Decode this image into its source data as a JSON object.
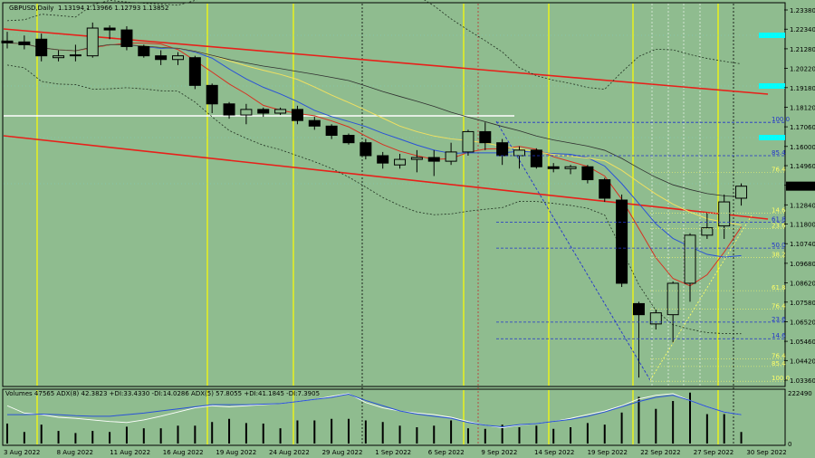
{
  "header": {
    "symbol": "GBPUSD,Daily",
    "ohlc": "1.13194 1.13966 1.12793 1.13852"
  },
  "indicator_label": "Volumes 47565  ADX(8) 42.3823 +DI:33.4330 -DI:14.0286  ADX(5) 57.8055 +DI:41.1845 -DI:7.3905",
  "colors": {
    "background": "#8fbc8f",
    "trendline": "#e8201a",
    "yellow_vline": "#ffff00",
    "cyan_level": "#00ffff",
    "fib_blue": "#2233cc",
    "fib_yellow": "#ffff66",
    "ma_red": "#d83020",
    "ma_blue": "#2a52d8",
    "ma_yellow": "#f0e060",
    "ma_black": "#303030"
  },
  "chart_data": {
    "type": "candlestick",
    "price_axis_ticks": [
      "1.23380",
      "1.22340",
      "1.21280",
      "1.20220",
      "1.19180",
      "1.18120",
      "1.17060",
      "1.16000",
      "1.14960",
      "1.13900",
      "1.12840",
      "1.11800",
      "1.10740",
      "1.09680",
      "1.08620",
      "1.07580",
      "1.06520",
      "1.05460",
      "1.04420",
      "1.03360"
    ],
    "current_price": "1.13852",
    "date_labels": [
      "3 Aug 2022",
      "8 Aug 2022",
      "11 Aug 2022",
      "16 Aug 2022",
      "19 Aug 2022",
      "24 Aug 2022",
      "29 Aug 2022",
      "1 Sep 2022",
      "6 Sep 2022",
      "9 Sep 2022",
      "14 Sep 2022",
      "19 Sep 2022",
      "22 Sep 2022",
      "27 Sep 2022",
      "30 Sep 2022"
    ],
    "volume_axis_label": "222490",
    "volume_axis_zero": "0",
    "candles": [
      {
        "o": 1.217,
        "h": 1.222,
        "l": 1.213,
        "c": 1.216
      },
      {
        "o": 1.2165,
        "h": 1.22,
        "l": 1.2125,
        "c": 1.215
      },
      {
        "o": 1.218,
        "h": 1.221,
        "l": 1.206,
        "c": 1.209
      },
      {
        "o": 1.208,
        "h": 1.212,
        "l": 1.206,
        "c": 1.209
      },
      {
        "o": 1.209,
        "h": 1.215,
        "l": 1.206,
        "c": 1.2095
      },
      {
        "o": 1.209,
        "h": 1.227,
        "l": 1.208,
        "c": 1.224
      },
      {
        "o": 1.224,
        "h": 1.2255,
        "l": 1.218,
        "c": 1.223
      },
      {
        "o": 1.223,
        "h": 1.225,
        "l": 1.212,
        "c": 1.214
      },
      {
        "o": 1.214,
        "h": 1.215,
        "l": 1.208,
        "c": 1.209
      },
      {
        "o": 1.209,
        "h": 1.212,
        "l": 1.204,
        "c": 1.207
      },
      {
        "o": 1.207,
        "h": 1.211,
        "l": 1.204,
        "c": 1.209
      },
      {
        "o": 1.208,
        "h": 1.209,
        "l": 1.191,
        "c": 1.193
      },
      {
        "o": 1.193,
        "h": 1.194,
        "l": 1.178,
        "c": 1.183
      },
      {
        "o": 1.183,
        "h": 1.184,
        "l": 1.175,
        "c": 1.177
      },
      {
        "o": 1.177,
        "h": 1.183,
        "l": 1.172,
        "c": 1.18
      },
      {
        "o": 1.18,
        "h": 1.181,
        "l": 1.176,
        "c": 1.178
      },
      {
        "o": 1.178,
        "h": 1.181,
        "l": 1.177,
        "c": 1.18
      },
      {
        "o": 1.18,
        "h": 1.182,
        "l": 1.172,
        "c": 1.174
      },
      {
        "o": 1.174,
        "h": 1.176,
        "l": 1.169,
        "c": 1.171
      },
      {
        "o": 1.171,
        "h": 1.172,
        "l": 1.164,
        "c": 1.166
      },
      {
        "o": 1.166,
        "h": 1.167,
        "l": 1.161,
        "c": 1.162
      },
      {
        "o": 1.162,
        "h": 1.164,
        "l": 1.153,
        "c": 1.155
      },
      {
        "o": 1.155,
        "h": 1.157,
        "l": 1.148,
        "c": 1.151
      },
      {
        "o": 1.15,
        "h": 1.156,
        "l": 1.148,
        "c": 1.153
      },
      {
        "o": 1.153,
        "h": 1.158,
        "l": 1.146,
        "c": 1.154
      },
      {
        "o": 1.154,
        "h": 1.158,
        "l": 1.144,
        "c": 1.152
      },
      {
        "o": 1.152,
        "h": 1.162,
        "l": 1.15,
        "c": 1.157
      },
      {
        "o": 1.157,
        "h": 1.169,
        "l": 1.155,
        "c": 1.168
      },
      {
        "o": 1.168,
        "h": 1.173,
        "l": 1.158,
        "c": 1.162
      },
      {
        "o": 1.162,
        "h": 1.164,
        "l": 1.15,
        "c": 1.155
      },
      {
        "o": 1.155,
        "h": 1.16,
        "l": 1.148,
        "c": 1.158
      },
      {
        "o": 1.158,
        "h": 1.159,
        "l": 1.148,
        "c": 1.149
      },
      {
        "o": 1.149,
        "h": 1.151,
        "l": 1.146,
        "c": 1.148
      },
      {
        "o": 1.148,
        "h": 1.15,
        "l": 1.145,
        "c": 1.149
      },
      {
        "o": 1.149,
        "h": 1.15,
        "l": 1.14,
        "c": 1.142
      },
      {
        "o": 1.142,
        "h": 1.143,
        "l": 1.13,
        "c": 1.132
      },
      {
        "o": 1.131,
        "h": 1.134,
        "l": 1.084,
        "c": 1.086
      },
      {
        "o": 1.075,
        "h": 1.076,
        "l": 1.035,
        "c": 1.069
      },
      {
        "o": 1.064,
        "h": 1.072,
        "l": 1.061,
        "c": 1.07
      },
      {
        "o": 1.069,
        "h": 1.087,
        "l": 1.054,
        "c": 1.086
      },
      {
        "o": 1.086,
        "h": 1.113,
        "l": 1.076,
        "c": 1.112
      },
      {
        "o": 1.112,
        "h": 1.124,
        "l": 1.11,
        "c": 1.116
      },
      {
        "o": 1.117,
        "h": 1.134,
        "l": 1.11,
        "c": 1.13
      },
      {
        "o": 1.132,
        "h": 1.14,
        "l": 1.128,
        "c": 1.1385
      }
    ],
    "volumes": [
      0.38,
      0.22,
      0.36,
      0.24,
      0.2,
      0.24,
      0.22,
      0.32,
      0.29,
      0.29,
      0.34,
      0.34,
      0.41,
      0.47,
      0.39,
      0.38,
      0.29,
      0.44,
      0.44,
      0.47,
      0.47,
      0.44,
      0.41,
      0.34,
      0.31,
      0.34,
      0.44,
      0.29,
      0.28,
      0.36,
      0.31,
      0.34,
      0.28,
      0.31,
      0.39,
      0.36,
      0.59,
      0.89,
      0.66,
      0.81,
      0.97,
      0.56,
      0.56,
      0.22
    ],
    "adx_white": [
      0.72,
      0.58,
      0.55,
      0.5,
      0.48,
      0.45,
      0.42,
      0.4,
      0.45,
      0.52,
      0.6,
      0.68,
      0.72,
      0.7,
      0.72,
      0.74,
      0.76,
      0.8,
      0.84,
      0.9,
      0.95,
      0.78,
      0.68,
      0.62,
      0.58,
      0.55,
      0.5,
      0.42,
      0.35,
      0.3,
      0.35,
      0.38,
      0.42,
      0.48,
      0.55,
      0.62,
      0.72,
      0.85,
      0.92,
      0.95,
      0.82,
      0.7,
      0.6,
      0.55
    ],
    "adx_blue": [
      0.55,
      0.55,
      0.56,
      0.55,
      0.53,
      0.52,
      0.52,
      0.55,
      0.58,
      0.62,
      0.66,
      0.7,
      0.74,
      0.74,
      0.74,
      0.75,
      0.76,
      0.8,
      0.84,
      0.88,
      0.94,
      0.82,
      0.72,
      0.62,
      0.56,
      0.52,
      0.48,
      0.4,
      0.35,
      0.32,
      0.36,
      0.38,
      0.42,
      0.46,
      0.52,
      0.6,
      0.7,
      0.8,
      0.88,
      0.92,
      0.82,
      0.7,
      0.6,
      0.55
    ],
    "fib_levels_blue": [
      {
        "label": "100.0",
        "price": 1.173
      },
      {
        "label": "85.4",
        "price": 1.155
      },
      {
        "label": "61.8",
        "price": 1.119
      },
      {
        "label": "50.0",
        "price": 1.105
      },
      {
        "label": "23.6",
        "price": 1.065
      },
      {
        "label": "14.6",
        "price": 1.056
      }
    ],
    "fib_levels_yellow": [
      {
        "label": "76.4",
        "price": 1.146
      },
      {
        "label": "14.6",
        "price": 1.124
      },
      {
        "label": "23.6",
        "price": 1.1155
      },
      {
        "label": "38.2",
        "price": 1.1
      },
      {
        "label": "76.4",
        "price": 1.072
      },
      {
        "label": "61.8",
        "price": 1.082
      },
      {
        "label": "76.4",
        "price": 1.045
      },
      {
        "label": "85.4",
        "price": 1.041
      },
      {
        "label": "100.0",
        "price": 1.033
      }
    ]
  }
}
